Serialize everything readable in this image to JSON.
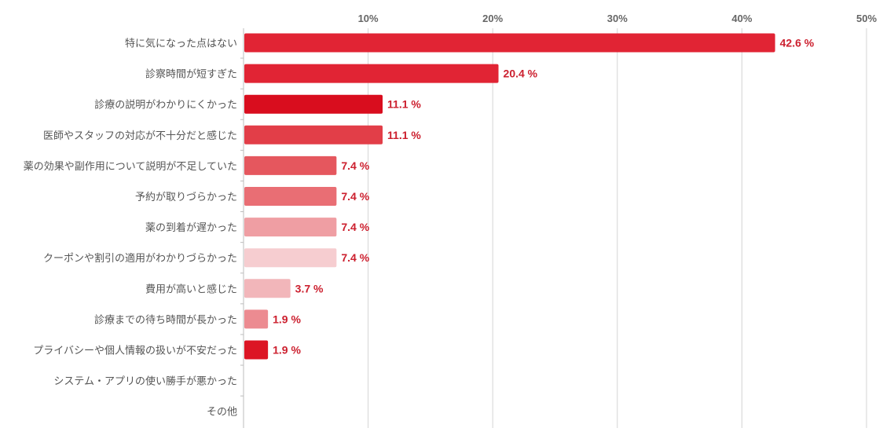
{
  "chart_data": {
    "type": "bar",
    "orientation": "horizontal",
    "title": "",
    "xlabel": "",
    "ylabel": "",
    "xlim": [
      0,
      50
    ],
    "x_ticks": [
      "10%",
      "20%",
      "30%",
      "40%",
      "50%"
    ],
    "tick_values": [
      10,
      20,
      30,
      40,
      50
    ],
    "grid": true,
    "categories": [
      "特に気になった点はない",
      "診察時間が短すぎた",
      "診療の説明がわかりにくかった",
      "医師やスタッフの対応が不十分だと感じた",
      "薬の効果や副作用について説明が不足していた",
      "予約が取りづらかった",
      "薬の到着が遅かった",
      "クーポンや割引の適用がわかりづらかった",
      "費用が高いと感じた",
      "診療までの待ち時間が長かった",
      "プライバシーや個人情報の扱いが不安だった",
      "システム・アプリの使い勝手が悪かった",
      "その他"
    ],
    "values": [
      42.6,
      20.4,
      11.1,
      11.1,
      7.4,
      7.4,
      7.4,
      7.4,
      3.7,
      1.9,
      1.9,
      0,
      0
    ],
    "value_labels": [
      "42.6 %",
      "20.4 %",
      "11.1 %",
      "11.1 %",
      "7.4 %",
      "7.4 %",
      "7.4 %",
      "7.4 %",
      "3.7 %",
      "1.9 %",
      "1.9 %",
      "",
      ""
    ],
    "colors": [
      "#e12434",
      "#e12434",
      "#d90d1e",
      "#e23e48",
      "#e5575e",
      "#e96e74",
      "#ef9ea3",
      "#f6cdd0",
      "#f2b6ba",
      "#ec8b91",
      "#dc1524",
      "#e12434",
      "#e12434"
    ],
    "label_color": "#cc1f2e"
  }
}
